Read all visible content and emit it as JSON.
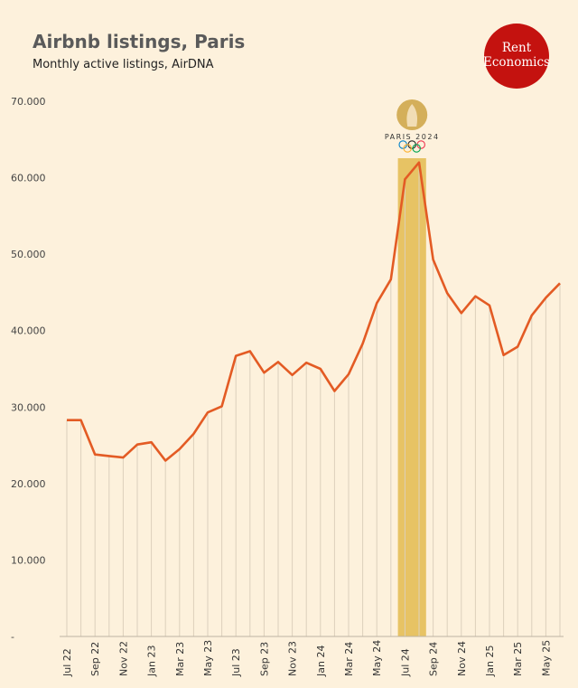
{
  "header": {
    "title": "Airbnb listings, Paris",
    "subtitle": "Monthly active listings, AirDNA"
  },
  "logo": {
    "line1": "Rent",
    "line2": "Economics",
    "color": "#c4120f"
  },
  "olympics": {
    "text": "PARIS 2024",
    "highlight_color": "#e3bb4f",
    "highlight_months": [
      24,
      25
    ]
  },
  "colors": {
    "line": "#e35b24",
    "grid": "#dcd0bc",
    "background": "#fdf1dc"
  },
  "chart_data": {
    "type": "line",
    "title": "Airbnb listings, Paris",
    "subtitle": "Monthly active listings, AirDNA",
    "ylim": [
      0,
      70000
    ],
    "yticks": [
      {
        "value": 0,
        "label": "-"
      },
      {
        "value": 10000,
        "label": "10.000"
      },
      {
        "value": 20000,
        "label": "20.000"
      },
      {
        "value": 30000,
        "label": "30.000"
      },
      {
        "value": 40000,
        "label": "40.000"
      },
      {
        "value": 50000,
        "label": "50.000"
      },
      {
        "value": 60000,
        "label": "60.000"
      },
      {
        "value": 70000,
        "label": "70.000"
      }
    ],
    "x": [
      "Jul 22",
      "Aug 22",
      "Sep 22",
      "Oct 22",
      "Nov 22",
      "Dec 22",
      "Jan 23",
      "Feb 23",
      "Mar 23",
      "Apr 23",
      "May 23",
      "Jun 23",
      "Jul 23",
      "Aug 23",
      "Sep 23",
      "Oct 23",
      "Nov 23",
      "Dec 23",
      "Jan 24",
      "Feb 24",
      "Mar 24",
      "Apr 24",
      "May 24",
      "Jun 24",
      "Jul 24",
      "Aug 24",
      "Sep 24",
      "Oct 24",
      "Nov 24",
      "Dec 24",
      "Jan 25",
      "Feb 25",
      "Mar 25",
      "Apr 25",
      "May 25",
      "Jun 25"
    ],
    "xtick_labels": [
      "Jul 22",
      "",
      "Sep 22",
      "",
      "Nov 22",
      "",
      "Jan 23",
      "",
      "Mar 23",
      "",
      "May 23",
      "",
      "Jul 23",
      "",
      "Sep 23",
      "",
      "Nov 23",
      "",
      "Jan 24",
      "",
      "Mar 24",
      "",
      "May 24",
      "",
      "Jul 24",
      "",
      "Sep 24",
      "",
      "Nov 24",
      "",
      "Jan 25",
      "",
      "Mar 25",
      "",
      "May 25",
      ""
    ],
    "values": [
      28300,
      28300,
      23800,
      23600,
      23400,
      25100,
      25400,
      23000,
      24500,
      26500,
      29300,
      30100,
      36700,
      37300,
      34500,
      35900,
      34200,
      35800,
      35000,
      32100,
      34300,
      38300,
      43600,
      46700,
      59800,
      62000,
      49300,
      44900,
      42300,
      44500,
      43300,
      36800,
      37900,
      42000,
      44300,
      46200
    ],
    "grid": "vertical drop lines"
  }
}
